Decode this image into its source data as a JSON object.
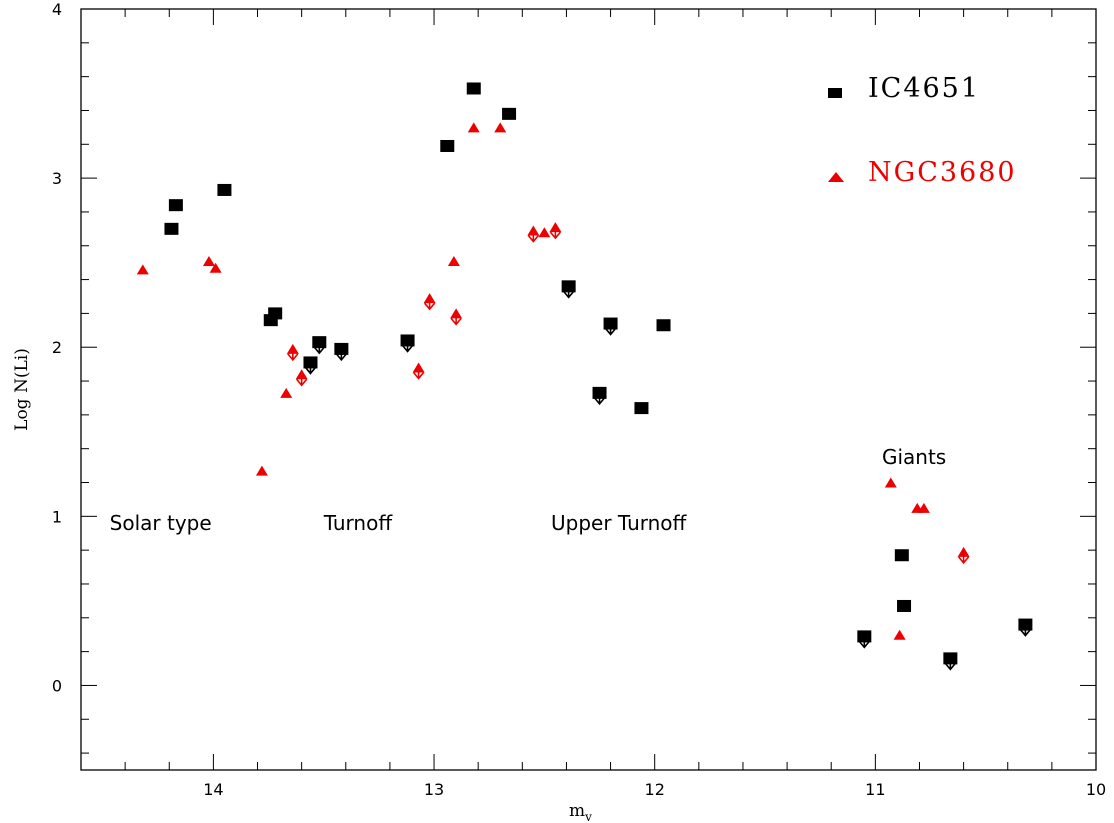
{
  "chart_data": {
    "type": "scatter",
    "xlabel": "m",
    "xlabel_sub": "v",
    "ylabel": "Log N(Li)",
    "xlim": [
      14.6,
      10.0
    ],
    "ylim": [
      -0.5,
      4.0
    ],
    "x_reversed": true,
    "xticks": [
      14,
      13,
      12,
      11,
      10
    ],
    "yticks": [
      0,
      1,
      2,
      3,
      4
    ],
    "grid": false,
    "legend_position": "top-right",
    "annotations": [
      {
        "text": "Solar type",
        "x": 14.47,
        "y": 0.92
      },
      {
        "text": "Turnoff",
        "x": 13.5,
        "y": 0.92
      },
      {
        "text": "Upper Turnoff",
        "x": 12.47,
        "y": 0.92
      },
      {
        "text": "Giants",
        "x": 10.97,
        "y": 1.31
      }
    ],
    "series": [
      {
        "name": "IC4651",
        "marker": "square",
        "color": "#000000",
        "points": [
          {
            "x": 14.19,
            "y": 2.7,
            "upper_limit": false
          },
          {
            "x": 14.17,
            "y": 2.84,
            "upper_limit": false
          },
          {
            "x": 13.95,
            "y": 2.93,
            "upper_limit": false
          },
          {
            "x": 13.74,
            "y": 2.16,
            "upper_limit": false
          },
          {
            "x": 13.72,
            "y": 2.2,
            "upper_limit": false
          },
          {
            "x": 13.56,
            "y": 1.91,
            "upper_limit": true
          },
          {
            "x": 13.52,
            "y": 2.03,
            "upper_limit": true
          },
          {
            "x": 13.42,
            "y": 1.99,
            "upper_limit": true
          },
          {
            "x": 13.12,
            "y": 2.04,
            "upper_limit": true
          },
          {
            "x": 12.94,
            "y": 3.19,
            "upper_limit": false
          },
          {
            "x": 12.82,
            "y": 3.53,
            "upper_limit": false
          },
          {
            "x": 12.66,
            "y": 3.38,
            "upper_limit": false
          },
          {
            "x": 12.39,
            "y": 2.36,
            "upper_limit": true
          },
          {
            "x": 12.25,
            "y": 1.73,
            "upper_limit": true
          },
          {
            "x": 12.2,
            "y": 2.14,
            "upper_limit": true
          },
          {
            "x": 12.06,
            "y": 1.64,
            "upper_limit": false
          },
          {
            "x": 11.96,
            "y": 2.13,
            "upper_limit": false
          },
          {
            "x": 11.05,
            "y": 0.29,
            "upper_limit": true
          },
          {
            "x": 10.88,
            "y": 0.77,
            "upper_limit": false
          },
          {
            "x": 10.87,
            "y": 0.47,
            "upper_limit": false
          },
          {
            "x": 10.66,
            "y": 0.16,
            "upper_limit": true
          },
          {
            "x": 10.32,
            "y": 0.36,
            "upper_limit": true
          }
        ]
      },
      {
        "name": "NGC3680",
        "marker": "triangle",
        "color": "#ee0000",
        "points": [
          {
            "x": 14.32,
            "y": 2.46,
            "upper_limit": false
          },
          {
            "x": 14.02,
            "y": 2.51,
            "upper_limit": false
          },
          {
            "x": 13.99,
            "y": 2.47,
            "upper_limit": false
          },
          {
            "x": 13.78,
            "y": 1.27,
            "upper_limit": false
          },
          {
            "x": 13.67,
            "y": 1.73,
            "upper_limit": false
          },
          {
            "x": 13.64,
            "y": 1.99,
            "upper_limit": true
          },
          {
            "x": 13.6,
            "y": 1.84,
            "upper_limit": true
          },
          {
            "x": 13.07,
            "y": 1.88,
            "upper_limit": true
          },
          {
            "x": 13.02,
            "y": 2.29,
            "upper_limit": true
          },
          {
            "x": 12.91,
            "y": 2.51,
            "upper_limit": false
          },
          {
            "x": 12.9,
            "y": 2.2,
            "upper_limit": true
          },
          {
            "x": 12.82,
            "y": 3.3,
            "upper_limit": false
          },
          {
            "x": 12.7,
            "y": 3.3,
            "upper_limit": false
          },
          {
            "x": 12.55,
            "y": 2.69,
            "upper_limit": true
          },
          {
            "x": 12.5,
            "y": 2.68,
            "upper_limit": false
          },
          {
            "x": 12.45,
            "y": 2.71,
            "upper_limit": true
          },
          {
            "x": 10.93,
            "y": 1.2,
            "upper_limit": false
          },
          {
            "x": 10.89,
            "y": 0.3,
            "upper_limit": false
          },
          {
            "x": 10.81,
            "y": 1.05,
            "upper_limit": false
          },
          {
            "x": 10.78,
            "y": 1.05,
            "upper_limit": false
          },
          {
            "x": 10.6,
            "y": 0.79,
            "upper_limit": true
          }
        ]
      }
    ]
  }
}
